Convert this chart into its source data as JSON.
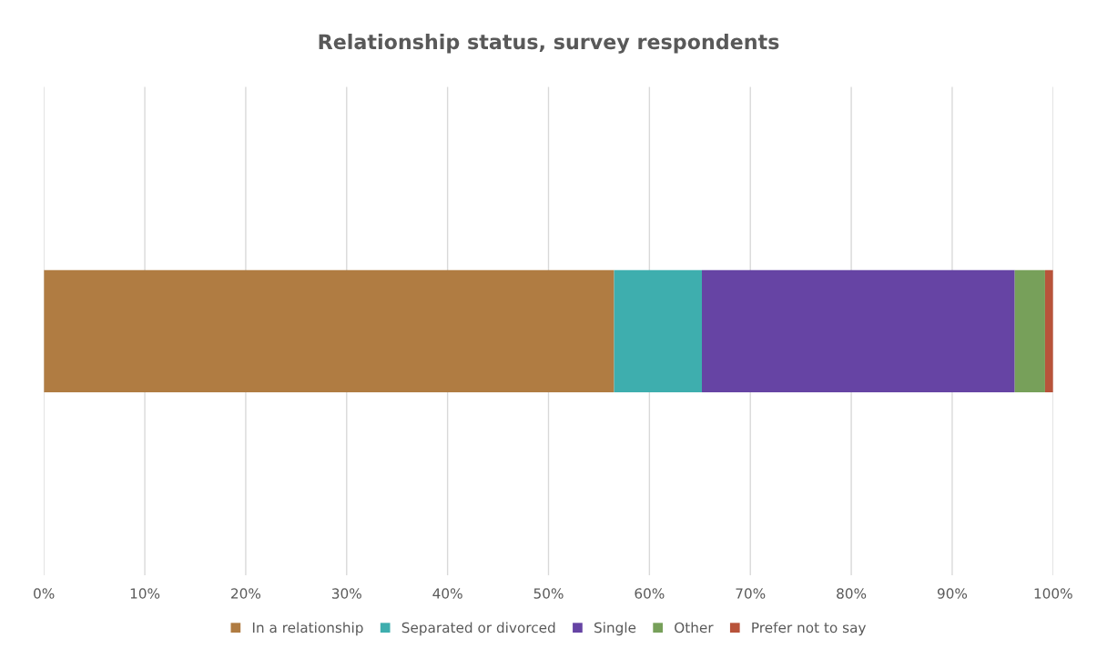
{
  "chart_data": {
    "type": "bar",
    "orientation": "horizontal",
    "stacked": true,
    "title": "Relationship status, survey respondents",
    "categories": [
      null
    ],
    "series": [
      {
        "name": "In a relationship",
        "color": "#b07c42",
        "values": [
          56.5
        ]
      },
      {
        "name": "Separated or divorced",
        "color": "#3eaeae",
        "values": [
          8.7
        ]
      },
      {
        "name": "Single",
        "color": "#6644a4",
        "values": [
          31.0
        ]
      },
      {
        "name": "Other",
        "color": "#77a05a",
        "values": [
          3.0
        ]
      },
      {
        "name": "Prefer not to say",
        "color": "#b8533a",
        "values": [
          0.8
        ]
      }
    ],
    "xlim": [
      0,
      100
    ],
    "xticks": [
      {
        "value": 0,
        "label": "0%"
      },
      {
        "value": 10,
        "label": "10%"
      },
      {
        "value": 20,
        "label": "20%"
      },
      {
        "value": 30,
        "label": "30%"
      },
      {
        "value": 40,
        "label": "40%"
      },
      {
        "value": 50,
        "label": "50%"
      },
      {
        "value": 60,
        "label": "60%"
      },
      {
        "value": 70,
        "label": "70%"
      },
      {
        "value": 80,
        "label": "80%"
      },
      {
        "value": 90,
        "label": "90%"
      },
      {
        "value": 100,
        "label": "100%"
      }
    ],
    "tick_labels": "x",
    "grid": "x",
    "legend": "bottom"
  }
}
